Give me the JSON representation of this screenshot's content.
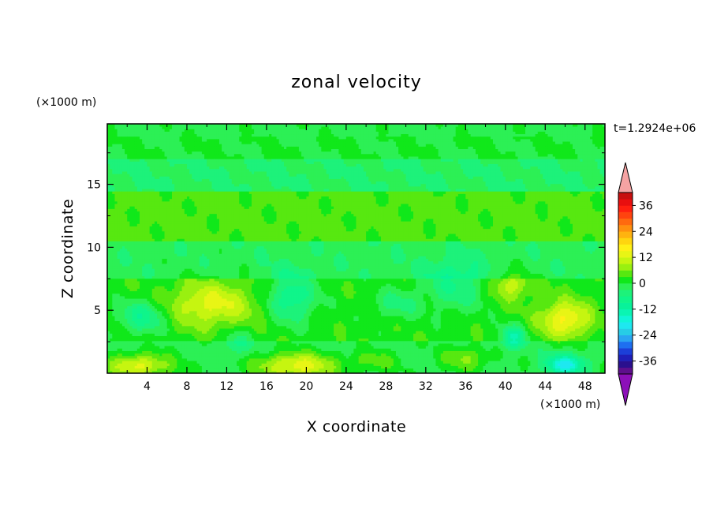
{
  "chart_data": {
    "type": "heatmap",
    "title": "zonal velocity",
    "xlabel": "X coordinate",
    "ylabel": "Z coordinate",
    "x_units": "(×1000 m)",
    "y_units": "(×1000 m)",
    "time_label": "t=1.2924e+06",
    "xlim": [
      0,
      50
    ],
    "ylim": [
      0,
      19.8
    ],
    "x_ticks": [
      4,
      8,
      12,
      16,
      20,
      24,
      28,
      32,
      36,
      40,
      44,
      48
    ],
    "y_ticks": [
      5,
      10,
      15
    ],
    "colorbar": {
      "levels": [
        -42,
        -39,
        -36,
        -33,
        -30,
        -27,
        -24,
        -21,
        -18,
        -15,
        -12,
        -9,
        -6,
        -3,
        0,
        3,
        6,
        9,
        12,
        15,
        18,
        21,
        24,
        27,
        30,
        33,
        36,
        39,
        42
      ],
      "labels": [
        36,
        24,
        12,
        0,
        -12,
        -24,
        -36
      ],
      "colors": [
        "#5e0f8c",
        "#2a108e",
        "#1f1fb8",
        "#1c3fd8",
        "#1e6ff0",
        "#2aa5f2",
        "#27cde6",
        "#1ee8f0",
        "#10f5d8",
        "#0af5b3",
        "#08f29a",
        "#0ff58a",
        "#1df27a",
        "#2cf055",
        "#10e81a",
        "#57e810",
        "#99f010",
        "#c6f510",
        "#e8f515",
        "#fff016",
        "#ffd50f",
        "#ffb30f",
        "#ff900f",
        "#ff6a0f",
        "#ff430f",
        "#ff1f0f",
        "#e80f0f",
        "#c70f0f"
      ],
      "under_color": "#8c10b8",
      "over_color": "#f5a3a3"
    },
    "fields": {
      "background_value": 2,
      "bands": [
        {
          "z_min": 0,
          "z_max": 2.5,
          "value": -1
        },
        {
          "z_min": 7.5,
          "z_max": 10.5,
          "value": -2
        },
        {
          "z_min": 10.5,
          "z_max": 14.5,
          "value": 4
        },
        {
          "z_min": 14.5,
          "z_max": 17,
          "value": -3
        },
        {
          "z_min": 17,
          "z_max": 18.8,
          "value": 0
        },
        {
          "z_min": 18.8,
          "z_max": 19.8,
          "value": -1
        }
      ],
      "features": [
        {
          "x": 10.5,
          "z": 5.5,
          "rx": 5.5,
          "rz": 2.3,
          "value": 11
        },
        {
          "x": 46,
          "z": 4.3,
          "rx": 3.2,
          "rz": 1.8,
          "value": 14
        },
        {
          "x": 40.5,
          "z": 7,
          "rx": 2.5,
          "rz": 1.5,
          "value": 9
        },
        {
          "x": 19,
          "z": 0.6,
          "rx": 5,
          "rz": 1.3,
          "value": 15
        },
        {
          "x": 3.2,
          "z": 0.6,
          "rx": 4,
          "rz": 1.2,
          "value": 14
        },
        {
          "x": 36,
          "z": 1.2,
          "rx": 3,
          "rz": 1.2,
          "value": 7
        },
        {
          "x": 27,
          "z": 1.0,
          "rx": 3,
          "rz": 1.0,
          "value": 5
        },
        {
          "x": 18.5,
          "z": 6,
          "rx": 3,
          "rz": 2.4,
          "value": -11
        },
        {
          "x": 3.5,
          "z": 4.5,
          "rx": 3,
          "rz": 1.7,
          "value": -10
        },
        {
          "x": 35,
          "z": 7,
          "rx": 4,
          "rz": 2.5,
          "value": -8
        },
        {
          "x": 40.8,
          "z": 2.9,
          "rx": 1.6,
          "rz": 1.1,
          "value": -14
        },
        {
          "x": 46,
          "z": 0.7,
          "rx": 2.4,
          "rz": 1.0,
          "value": -18
        },
        {
          "x": 29,
          "z": 5.5,
          "rx": 3,
          "rz": 1.5,
          "value": -6
        },
        {
          "x": 13,
          "z": 2.5,
          "rx": 2,
          "rz": 1.3,
          "value": -6
        }
      ]
    }
  }
}
